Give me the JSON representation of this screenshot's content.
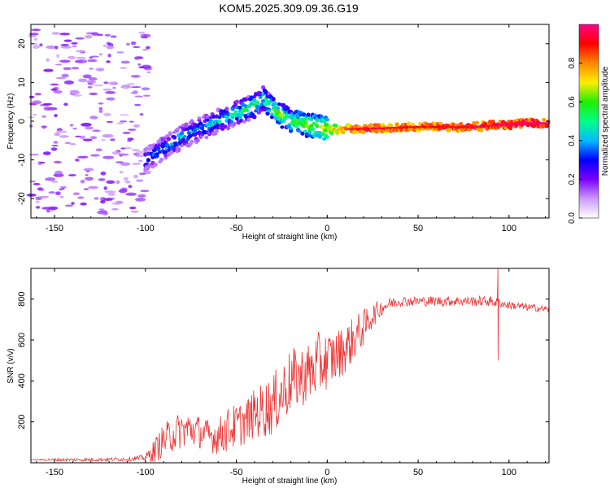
{
  "title": "KOM5.2025.309.09.36.G19",
  "chart_data": [
    {
      "type": "heatmap",
      "xlabel": "Height of straight line (km)",
      "ylabel": "Frequency (Hz)",
      "xlim": [
        -163,
        122
      ],
      "ylim": [
        -25,
        25
      ],
      "xticks": [
        -150,
        -100,
        -50,
        0,
        50,
        100
      ],
      "yticks": [
        -20,
        -10,
        0,
        10,
        20
      ],
      "colorbar": {
        "label": "Normalized spectral amplitude",
        "range": [
          0,
          1
        ],
        "ticks": [
          "0.0",
          "0.2",
          "0.4",
          "0.6",
          "0.8"
        ],
        "colormap": [
          "#ffffff",
          "#cc99ff",
          "#7a00ff",
          "#0000ff",
          "#00bbff",
          "#00ff88",
          "#22ee00",
          "#ffee00",
          "#ff8800",
          "#ff0000",
          "#ff0088"
        ]
      },
      "ridge": [
        {
          "x": -100,
          "y": -10,
          "a": 0.35
        },
        {
          "x": -90,
          "y": -7,
          "a": 0.4
        },
        {
          "x": -80,
          "y": -4,
          "a": 0.45
        },
        {
          "x": -70,
          "y": -2,
          "a": 0.4
        },
        {
          "x": -60,
          "y": 0,
          "a": 0.45
        },
        {
          "x": -50,
          "y": 2,
          "a": 0.5
        },
        {
          "x": -40,
          "y": 4,
          "a": 0.55
        },
        {
          "x": -35,
          "y": 6,
          "a": 0.5
        },
        {
          "x": -30,
          "y": 3,
          "a": 0.6
        },
        {
          "x": -20,
          "y": 0,
          "a": 0.6
        },
        {
          "x": -10,
          "y": -1,
          "a": 0.65
        },
        {
          "x": 0,
          "y": -2,
          "a": 0.7
        },
        {
          "x": 20,
          "y": -2,
          "a": 0.9
        },
        {
          "x": 50,
          "y": -1.5,
          "a": 0.85
        },
        {
          "x": 80,
          "y": -1.5,
          "a": 0.9
        },
        {
          "x": 110,
          "y": -0.5,
          "a": 0.95
        },
        {
          "x": 122,
          "y": -0.5,
          "a": 0.95
        }
      ]
    },
    {
      "type": "line",
      "xlabel": "Height of straight line (km)",
      "ylabel": "SNR (v/v)",
      "xlim": [
        -163,
        122
      ],
      "ylim": [
        0,
        950
      ],
      "xticks": [
        -150,
        -100,
        -50,
        0,
        50,
        100
      ],
      "yticks": [
        200,
        400,
        600,
        800
      ],
      "series": [
        {
          "name": "SNR",
          "color": "#ee3333",
          "x": [
            -163,
            -150,
            -130,
            -110,
            -100,
            -95,
            -90,
            -85,
            -80,
            -75,
            -70,
            -65,
            -60,
            -55,
            -50,
            -45,
            -40,
            -35,
            -30,
            -25,
            -20,
            -15,
            -10,
            -5,
            0,
            5,
            10,
            15,
            20,
            25,
            30,
            35,
            40,
            45,
            50,
            60,
            70,
            80,
            90,
            94,
            95,
            100,
            110,
            122
          ],
          "values": [
            15,
            15,
            15,
            18,
            25,
            60,
            110,
            140,
            160,
            165,
            150,
            130,
            130,
            160,
            180,
            200,
            240,
            260,
            280,
            340,
            400,
            420,
            440,
            480,
            500,
            520,
            560,
            610,
            660,
            720,
            760,
            780,
            790,
            790,
            790,
            790,
            790,
            790,
            790,
            780,
            780,
            770,
            760,
            750
          ],
          "noise": [
            0,
            8,
            8,
            10,
            15,
            60,
            80,
            90,
            90,
            90,
            80,
            80,
            90,
            110,
            110,
            110,
            120,
            140,
            150,
            160,
            160,
            150,
            150,
            160,
            140,
            130,
            120,
            110,
            90,
            60,
            40,
            30,
            25,
            25,
            25,
            25,
            25,
            25,
            25,
            25,
            20,
            20,
            20,
            15
          ]
        }
      ],
      "annotations": [
        {
          "x": 94,
          "y_low": 500,
          "y_high": 950,
          "label": "spike"
        }
      ]
    }
  ]
}
